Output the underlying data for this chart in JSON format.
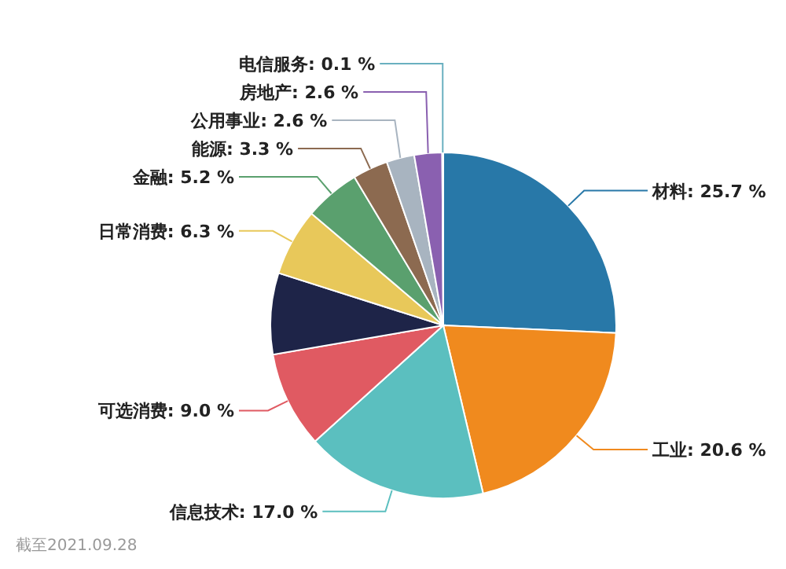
{
  "chart_data": {
    "type": "pie",
    "categories": [
      "材料",
      "工业",
      "信息技术",
      "可选消费",
      null,
      "日常消费",
      "金融",
      "能源",
      "公用事业",
      "房地产",
      "电信服务"
    ],
    "values": [
      25.7,
      20.6,
      17.0,
      9.0,
      7.6,
      6.3,
      5.2,
      3.3,
      2.6,
      2.6,
      0.1
    ],
    "value_labels": [
      "25.7 %",
      "20.6 %",
      "17.0 %",
      "9.0 %",
      null,
      "6.3 %",
      "5.2 %",
      "3.3 %",
      "2.6 %",
      "2.6 %",
      "0.1 %"
    ],
    "colors": [
      "#2878a8",
      "#f08a1e",
      "#5bbfbf",
      "#e05a62",
      "#1e2448",
      "#e8c85a",
      "#5aa06e",
      "#8c6a50",
      "#a8b4c0",
      "#8a60b0",
      "#6ab0c0"
    ],
    "annotations": [
      "截至2021.09.28"
    ]
  }
}
